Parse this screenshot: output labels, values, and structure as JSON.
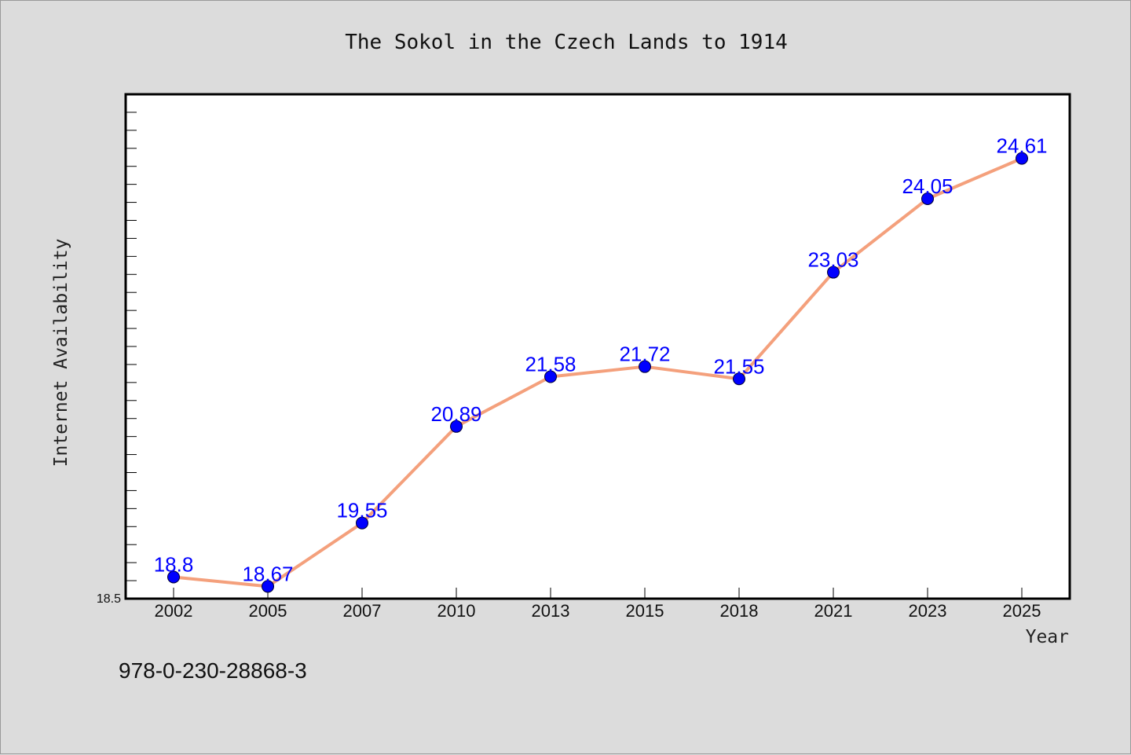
{
  "footer": {
    "isbn": "978-0-230-28868-3"
  },
  "colors": {
    "background": "#dcdcdc",
    "plot_background": "#ffffff",
    "line": "#f4a07c",
    "marker": "#0000ff",
    "data_label": "#0000ff"
  },
  "chart_data": {
    "type": "line",
    "title": "The Sokol in the Czech Lands to 1914",
    "xlabel": "Year",
    "ylabel": "Internet Availability",
    "categories": [
      "2002",
      "2005",
      "2007",
      "2010",
      "2013",
      "2015",
      "2018",
      "2021",
      "2023",
      "2025"
    ],
    "series": [
      {
        "values": [
          18.8,
          18.67,
          19.55,
          20.89,
          21.58,
          21.72,
          21.55,
          23.03,
          24.05,
          24.61
        ],
        "labels": [
          "18.8",
          "18.67",
          "19.55",
          "20.89",
          "21.58",
          "21.72",
          "21.55",
          "23.03",
          "24.05",
          "24.61"
        ]
      }
    ],
    "ylim": [
      18.5,
      25.5
    ],
    "ytick_labels": [
      "18.5"
    ],
    "grid": false,
    "legend": "none"
  }
}
